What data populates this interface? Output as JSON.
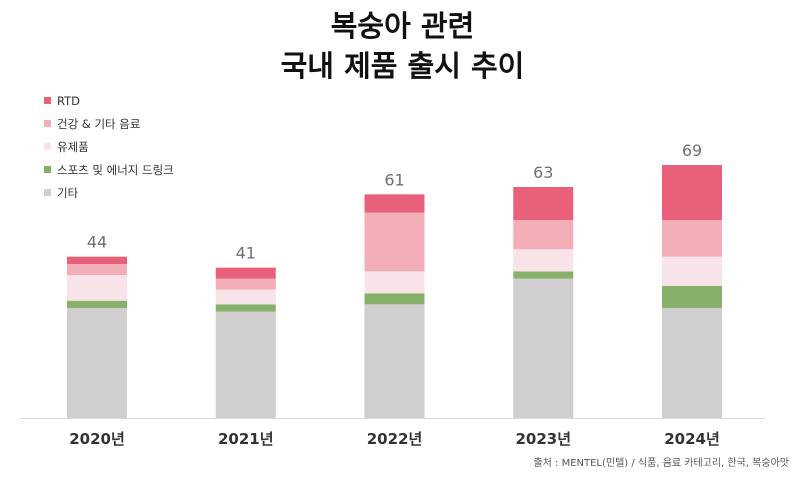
{
  "chart_data": {
    "type": "bar",
    "stacked": true,
    "title": "복숭아 관련\n국내 제품 출시 추이",
    "categories": [
      "2020년",
      "2021년",
      "2022년",
      "2023년",
      "2024년"
    ],
    "totals": [
      44,
      41,
      61,
      63,
      69
    ],
    "series": [
      {
        "name": "RTD",
        "color": "#E9607B",
        "values": [
          2,
          3,
          5,
          9,
          15
        ]
      },
      {
        "name": "건강 & 기타 음료",
        "color": "#F3AEB8",
        "values": [
          3,
          3,
          16,
          8,
          10
        ]
      },
      {
        "name": "유제품",
        "color": "#F8E4E8",
        "values": [
          7,
          4,
          6,
          6,
          8
        ]
      },
      {
        "name": "스포츠 및 에너지 드링크",
        "color": "#87B06A",
        "values": [
          2,
          2,
          3,
          2,
          6
        ]
      },
      {
        "name": "기타",
        "color": "#D0CECF",
        "values": [
          30,
          29,
          31,
          38,
          30
        ]
      }
    ],
    "ylim": [
      0,
      75
    ],
    "grid": false,
    "legend": "top-left",
    "source": "출처 : MENTEL(민텔) / 식품, 음료 카테고리, 한국, 복숭아맛"
  }
}
